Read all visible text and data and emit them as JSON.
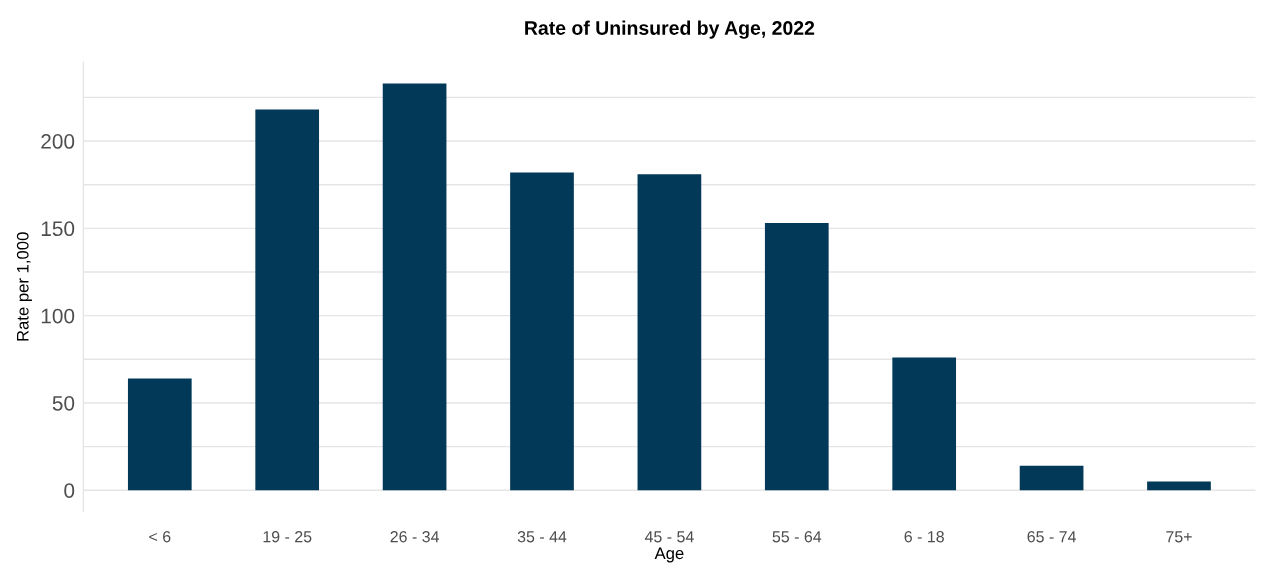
{
  "chart_data": {
    "type": "bar",
    "title": "Rate of Uninsured by Age, 2022",
    "xlabel": "Age",
    "ylabel": "Rate per 1,000",
    "categories": [
      "< 6",
      "19 - 25",
      "26 - 34",
      "35 - 44",
      "45 - 54",
      "55 - 64",
      "6 - 18",
      "65 - 74",
      "75+"
    ],
    "values": [
      64,
      218,
      233,
      182,
      181,
      153,
      76,
      14,
      5
    ],
    "color": "#023858",
    "ylim": [
      -12,
      245
    ],
    "yticks": [
      0,
      {
        "value": 25,
        "label": null
      },
      50,
      {
        "value": 75,
        "label": null
      },
      100,
      {
        "value": 125,
        "label": null
      },
      150,
      {
        "value": 175,
        "label": null
      },
      200,
      {
        "value": 225,
        "label": null
      }
    ],
    "grid": "y"
  }
}
